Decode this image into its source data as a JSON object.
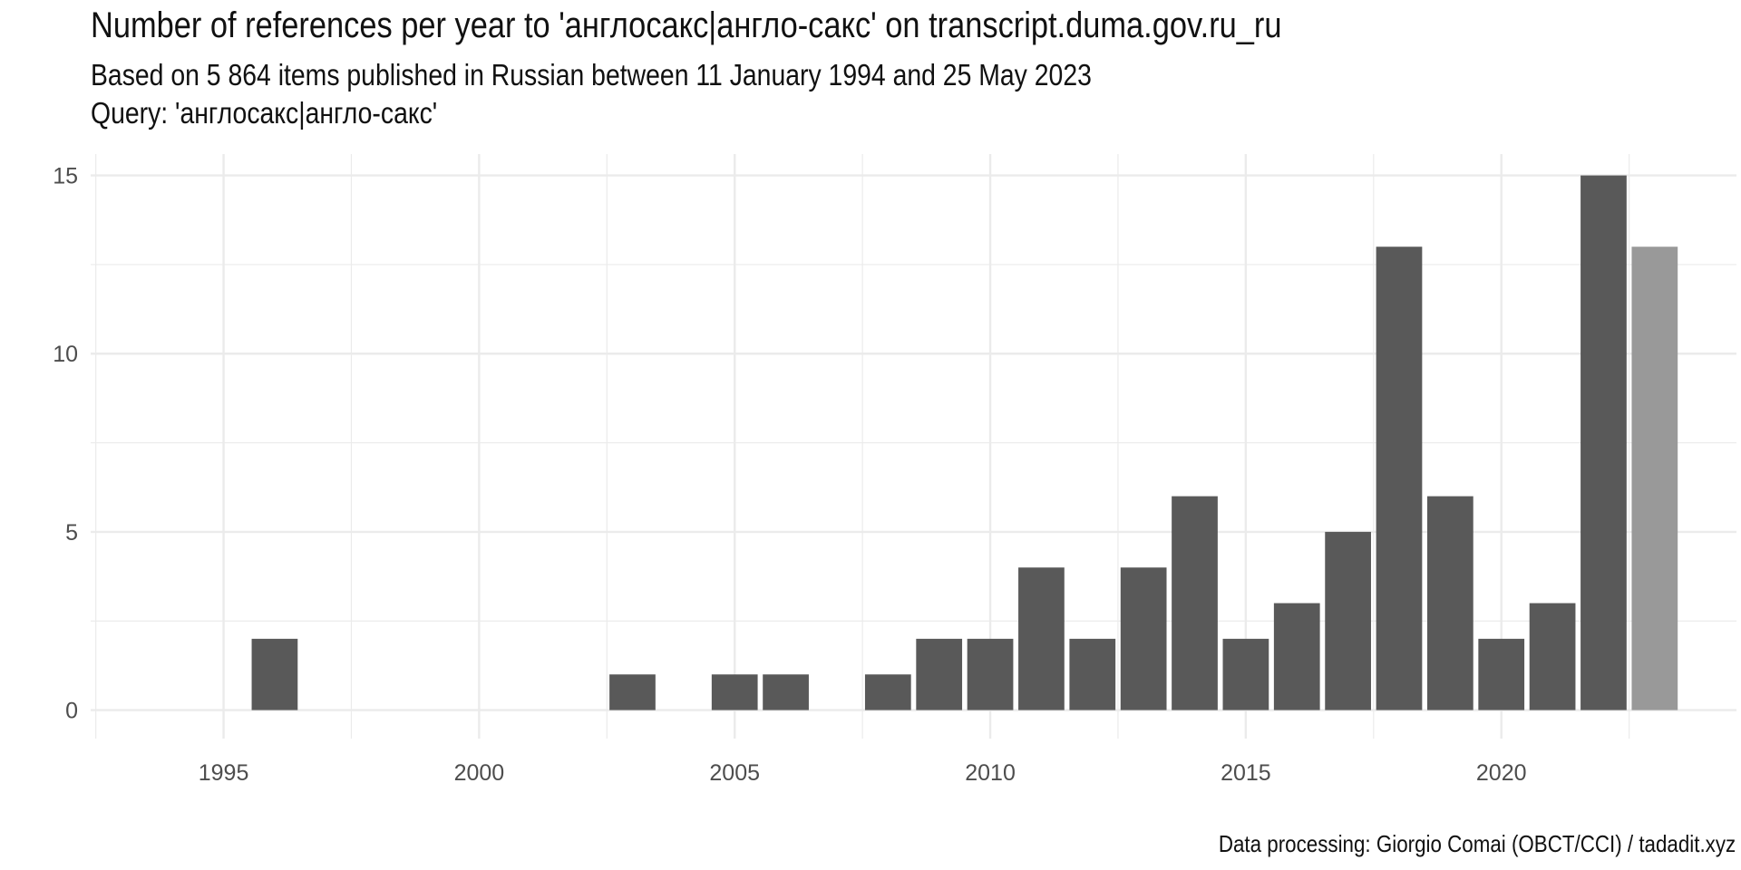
{
  "chart_data": {
    "type": "bar",
    "title": "Number of references per year to 'англосакс|англо-сакс' on transcript.duma.gov.ru_ru",
    "subtitle_lines": [
      "Based on 5 864 items published in Russian between 11 January 1994 and 25 May 2023",
      "Query: 'англосакс|англо-сакс'"
    ],
    "caption": "Data processing: Giorgio Comai (OBCT/CCI) / tadadit.xyz",
    "xlabel": "",
    "ylabel": "",
    "x": [
      1996,
      2003,
      2005,
      2006,
      2008,
      2009,
      2010,
      2011,
      2012,
      2013,
      2014,
      2015,
      2016,
      2017,
      2018,
      2019,
      2020,
      2021,
      2022,
      2023
    ],
    "values": [
      2,
      1,
      1,
      1,
      1,
      2,
      2,
      4,
      2,
      4,
      6,
      2,
      3,
      5,
      13,
      6,
      2,
      3,
      15,
      13
    ],
    "partial_year": 2023,
    "xlim": [
      1992.4,
      2024.6
    ],
    "ylim": [
      -0.8,
      15.6
    ],
    "x_ticks": [
      1995,
      2000,
      2005,
      2010,
      2015,
      2020
    ],
    "y_ticks": [
      0,
      5,
      10,
      15
    ],
    "grid": true,
    "legend": "none",
    "colors": {
      "bar": "#595959",
      "bar_partial": "#999999",
      "grid": "#ebebeb"
    }
  }
}
